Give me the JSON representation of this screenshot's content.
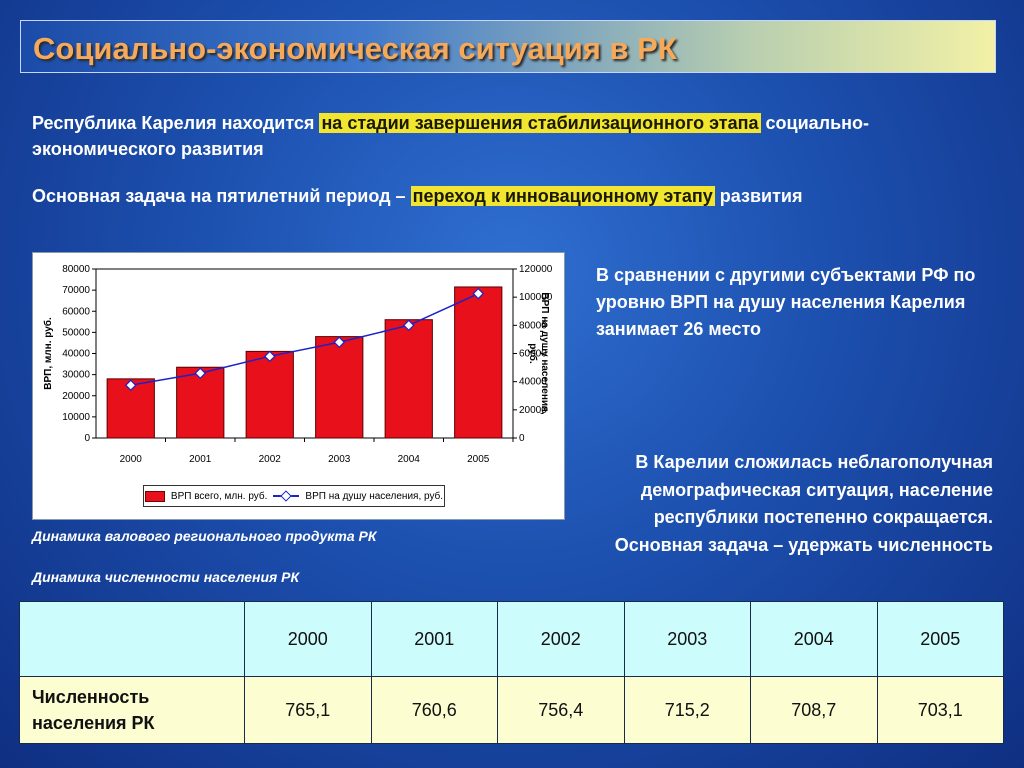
{
  "title": "Социально-экономическая ситуация в РК",
  "paragraph1": {
    "before": "Республика Карелия находится ",
    "highlight": "на стадии завершения стабилизационного этапа",
    "after": " социально-экономического развития"
  },
  "paragraph2": {
    "before": "Основная задача на пятилетний период – ",
    "highlight": "переход к инновационному этапу",
    "after": " развития"
  },
  "side_text_1": "В сравнении с другими субъектами РФ по уровню ВРП на душу населения Карелия занимает 26 место",
  "side_text_2": "В Карелии сложилась неблагополучная демографическая ситуация, население республики постепенно сокращается. Основная задача – удержать численность",
  "caption_chart": "Динамика валового регионального продукта РК",
  "caption_table": "Динамика численности населения РК",
  "colors": {
    "bar": "#e8101a",
    "line": "#1a22cc",
    "highlight": "#f2e530"
  },
  "chart_data": {
    "type": "bar",
    "categories": [
      "2000",
      "2001",
      "2002",
      "2003",
      "2004",
      "2005"
    ],
    "series": [
      {
        "name": "ВРП всего, млн. руб.",
        "axis": "left",
        "values": [
          28000,
          33500,
          41000,
          48000,
          56000,
          71500
        ]
      },
      {
        "name": "ВРП на душу населения, руб.",
        "axis": "right",
        "values": [
          37500,
          46000,
          58000,
          68000,
          80000,
          102500
        ]
      }
    ],
    "ylabel": "ВРП, млн. руб.",
    "ylabel_right": "ВРП на душу населения, руб.",
    "ylim": [
      0,
      80000
    ],
    "ylim_right": [
      0,
      120000
    ],
    "yticks": [
      "0",
      "10000",
      "20000",
      "30000",
      "40000",
      "50000",
      "60000",
      "70000",
      "80000"
    ],
    "yticks_right": [
      "0",
      "20000",
      "40000",
      "60000",
      "80000",
      "100000",
      "120000"
    ],
    "legend_position": "bottom"
  },
  "table": {
    "years": [
      "2000",
      "2001",
      "2002",
      "2003",
      "2004",
      "2005"
    ],
    "row_label": "Численность населения РК",
    "values": [
      "765,1",
      "760,6",
      "756,4",
      "715,2",
      "708,7",
      "703,1"
    ]
  }
}
